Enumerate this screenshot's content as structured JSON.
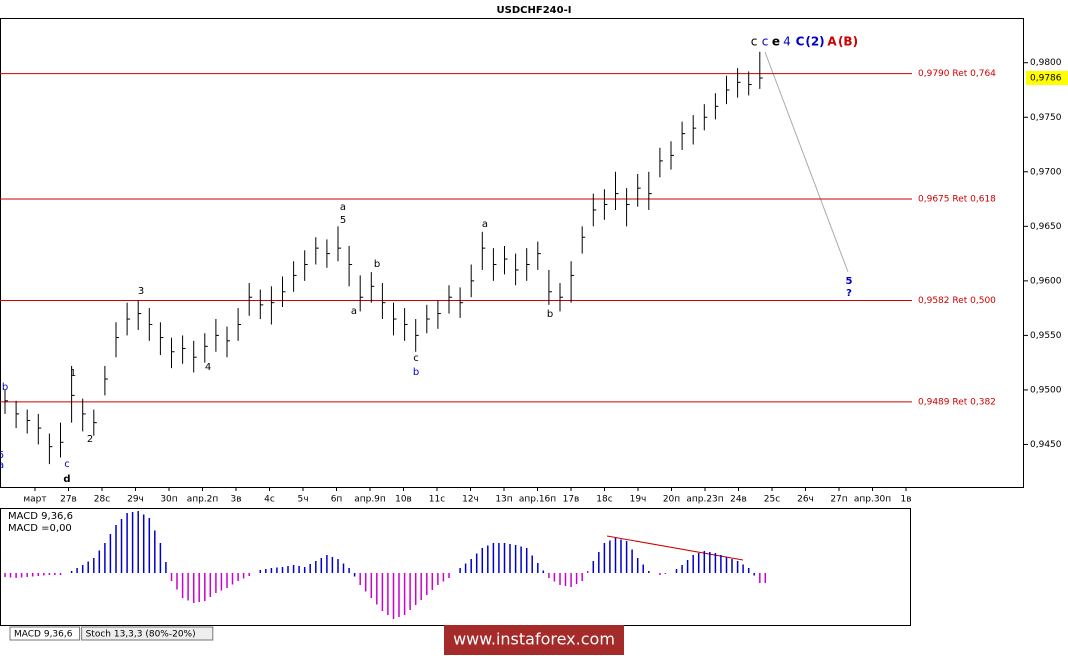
{
  "chart_data": {
    "type": "ohlc",
    "title": "USDCHF240-I",
    "ylim": [
      0.9411,
      0.9841
    ],
    "yticks": [
      {
        "value": 0.945,
        "label": "0,9450"
      },
      {
        "value": 0.95,
        "label": "0,9500"
      },
      {
        "value": 0.955,
        "label": "0,9550"
      },
      {
        "value": 0.96,
        "label": "0,9600"
      },
      {
        "value": 0.965,
        "label": "0,9650"
      },
      {
        "value": 0.97,
        "label": "0,9700"
      },
      {
        "value": 0.975,
        "label": "0,9750"
      },
      {
        "value": 0.98,
        "label": "0,9800"
      }
    ],
    "current_price": {
      "value": 0.9786,
      "label": "0,9786"
    },
    "levels": [
      {
        "value": 0.979,
        "label": "0,9790 Ret 0,764"
      },
      {
        "value": 0.9675,
        "label": "0,9675 Ret 0,618"
      },
      {
        "value": 0.9582,
        "label": "0,9582 Ret 0,500"
      },
      {
        "value": 0.9489,
        "label": "0,9489 Ret 0,382"
      }
    ],
    "level_color": "#cc0000",
    "bar_color": "#000000",
    "categories": [
      "март",
      "27в",
      "28с",
      "29ч",
      "30п",
      "апр.2п",
      "3в",
      "4с",
      "5ч",
      "6п",
      "апр.9п",
      "10в",
      "11с",
      "12ч",
      "13п",
      "апр.16п",
      "17в",
      "18с",
      "19ч",
      "20п",
      "апр.23п",
      "24в",
      "25с",
      "26ч",
      "27п",
      "апр.30п",
      "1в"
    ],
    "bars": {
      "high": [
        0.95,
        0.949,
        0.9482,
        0.9478,
        0.946,
        0.947,
        0.9522,
        0.9492,
        0.9482,
        0.9522,
        0.9562,
        0.958,
        0.9582,
        0.9575,
        0.9562,
        0.9548,
        0.955,
        0.9545,
        0.9552,
        0.9565,
        0.9558,
        0.9575,
        0.9598,
        0.9592,
        0.9595,
        0.9604,
        0.9618,
        0.9628,
        0.964,
        0.9638,
        0.965,
        0.9632,
        0.9605,
        0.9608,
        0.9598,
        0.958,
        0.9575,
        0.9565,
        0.9578,
        0.9582,
        0.9596,
        0.9594,
        0.9615,
        0.9645,
        0.963,
        0.9632,
        0.9625,
        0.963,
        0.9636,
        0.961,
        0.9598,
        0.9618,
        0.965,
        0.968,
        0.9684,
        0.97,
        0.9685,
        0.9698,
        0.97,
        0.9722,
        0.9728,
        0.9746,
        0.9752,
        0.9762,
        0.9772,
        0.9788,
        0.9795,
        0.9792,
        0.981
      ],
      "low": [
        0.9478,
        0.9465,
        0.946,
        0.945,
        0.9432,
        0.9438,
        0.947,
        0.9462,
        0.9458,
        0.9495,
        0.953,
        0.955,
        0.9555,
        0.9545,
        0.9532,
        0.952,
        0.9524,
        0.9516,
        0.9525,
        0.9535,
        0.953,
        0.9545,
        0.9568,
        0.9565,
        0.956,
        0.9576,
        0.959,
        0.96,
        0.9615,
        0.9612,
        0.9618,
        0.9595,
        0.9572,
        0.958,
        0.9565,
        0.955,
        0.9545,
        0.9535,
        0.9552,
        0.9556,
        0.957,
        0.9566,
        0.9585,
        0.961,
        0.96,
        0.9606,
        0.9596,
        0.96,
        0.961,
        0.9578,
        0.9572,
        0.958,
        0.9625,
        0.965,
        0.9656,
        0.9665,
        0.965,
        0.9668,
        0.9665,
        0.9695,
        0.9702,
        0.972,
        0.9725,
        0.9738,
        0.9748,
        0.9762,
        0.9768,
        0.977,
        0.9776
      ],
      "close": [
        0.949,
        0.9478,
        0.9472,
        0.9465,
        0.9448,
        0.9452,
        0.9495,
        0.9478,
        0.947,
        0.951,
        0.9548,
        0.9565,
        0.957,
        0.956,
        0.9548,
        0.9535,
        0.9538,
        0.953,
        0.954,
        0.955,
        0.9545,
        0.956,
        0.9585,
        0.9578,
        0.958,
        0.959,
        0.9605,
        0.9615,
        0.963,
        0.9625,
        0.963,
        0.9615,
        0.9585,
        0.9595,
        0.958,
        0.9565,
        0.956,
        0.955,
        0.9565,
        0.957,
        0.9585,
        0.958,
        0.96,
        0.963,
        0.9615,
        0.962,
        0.961,
        0.9615,
        0.9625,
        0.959,
        0.9585,
        0.9605,
        0.964,
        0.9665,
        0.967,
        0.968,
        0.967,
        0.9685,
        0.968,
        0.971,
        0.9715,
        0.9735,
        0.974,
        0.975,
        0.976,
        0.9775,
        0.9782,
        0.978,
        0.9786
      ]
    },
    "annotations": [
      {
        "text": "b",
        "color": "#0000cc"
      },
      {
        "text": "5",
        "color": "#0000cc"
      },
      {
        "text": "a",
        "color": "#0000cc"
      },
      {
        "text": "c",
        "color": "#0000cc"
      },
      {
        "text": "d",
        "color": "#000000"
      },
      {
        "text": "1",
        "color": "#000000"
      },
      {
        "text": "2",
        "color": "#000000"
      },
      {
        "text": "3",
        "color": "#000000"
      },
      {
        "text": "4",
        "color": "#000000"
      },
      {
        "text": "a",
        "color": "#000000"
      },
      {
        "text": "5",
        "color": "#000000"
      },
      {
        "text": "a",
        "color": "#000000"
      },
      {
        "text": "b",
        "color": "#000000"
      },
      {
        "text": "c",
        "color": "#000000"
      },
      {
        "text": "b",
        "color": "#0000cc"
      },
      {
        "text": "a",
        "color": "#000000"
      },
      {
        "text": "b",
        "color": "#000000"
      },
      {
        "text": "c",
        "color": "#000000"
      },
      {
        "text": "c",
        "color": "#0000cc"
      },
      {
        "text": "e",
        "color": "#000000"
      },
      {
        "text": "4",
        "color": "#0000cc"
      },
      {
        "text": "C",
        "color": "#0000cc"
      },
      {
        "text": "(2)",
        "color": "#0000cc"
      },
      {
        "text": "A",
        "color": "#cc0000"
      },
      {
        "text": "(B)",
        "color": "#cc0000"
      },
      {
        "text": "5",
        "color": "#0000cc"
      },
      {
        "text": "?",
        "color": "#0000cc"
      }
    ],
    "macd": {
      "label": "MACD 9,36,6",
      "value_label": "MACD =0,00",
      "ylim": [
        -0.0052,
        0.0065
      ],
      "positive_color": "#0000cc",
      "negative_color": "#cc00cc",
      "values": [
        -0.0004,
        -0.0005,
        -0.0004,
        -0.0003,
        -0.0002,
        -0.0002,
        0.0002,
        0.0008,
        0.0015,
        0.003,
        0.0048,
        0.006,
        0.0062,
        0.0055,
        0.003,
        -0.0008,
        -0.0025,
        -0.003,
        -0.0028,
        -0.002,
        -0.0015,
        -0.0008,
        -0.0003,
        0.0003,
        0.0005,
        0.0006,
        0.0008,
        0.0006,
        0.0012,
        0.0018,
        0.0014,
        0.0005,
        -0.0012,
        -0.0025,
        -0.0038,
        -0.0046,
        -0.0042,
        -0.0032,
        -0.0022,
        -0.0012,
        -0.0005,
        0.0005,
        0.0014,
        0.0025,
        0.003,
        0.003,
        0.0028,
        0.0025,
        0.001,
        -0.0005,
        -0.0012,
        -0.0014,
        -0.0008,
        0.0012,
        0.003,
        0.0035,
        0.0032,
        0.0015,
        0.0002,
        -0.0002,
        0.0,
        0.0008,
        0.0018,
        0.0022,
        0.002,
        0.0016,
        0.0012,
        0.0005,
        -0.001
      ]
    },
    "tabs": [
      "MACD 9,36,6",
      "Stoch 13,3,3 (80%-20%)"
    ],
    "watermark": "www.instaforex.com"
  }
}
